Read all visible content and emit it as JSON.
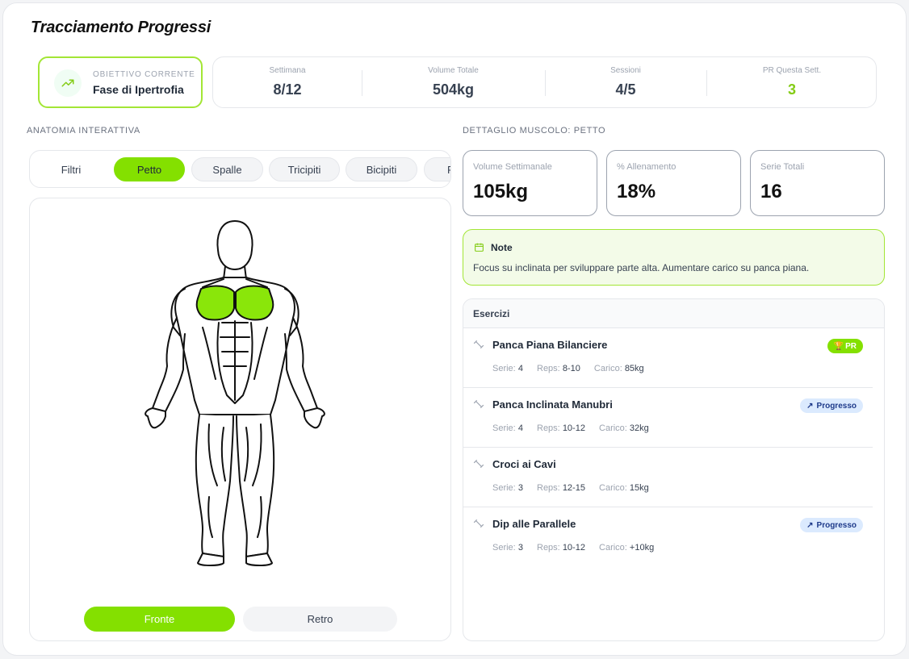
{
  "header": {
    "title": "Tracciamento Progressi"
  },
  "goal": {
    "caption": "Obiettivo Corrente",
    "value": "Fase di Ipertrofia"
  },
  "stats": [
    {
      "label": "Settimana",
      "value": "8/12"
    },
    {
      "label": "Volume Totale",
      "value": "504kg"
    },
    {
      "label": "Sessioni",
      "value": "4/5"
    },
    {
      "label": "PR Questa Sett.",
      "value": "3"
    }
  ],
  "anatomy": {
    "section_label": "Anatomia Interattiva",
    "filters": [
      "Filtri",
      "Petto",
      "Spalle",
      "Tricipiti",
      "Bicipiti",
      "F"
    ],
    "active_filter": "Petto",
    "view_buttons": {
      "front": "Fronte",
      "back": "Retro"
    },
    "active_view": "Fronte"
  },
  "detail": {
    "section_label": "Dettaglio Muscolo: Petto",
    "metrics": [
      {
        "label": "Volume Settimanale",
        "value": "105kg"
      },
      {
        "label": "% Allenamento",
        "value": "18%"
      },
      {
        "label": "Serie Totali",
        "value": "16"
      }
    ],
    "note": {
      "title": "Note",
      "text": "Focus su inclinata per sviluppare parte alta. Aumentare carico su panca piana."
    }
  },
  "exercises": {
    "title": "Esercizi",
    "meta_labels": {
      "sets": "Serie:",
      "reps": "Reps:",
      "load": "Carico:"
    },
    "items": [
      {
        "name": "Panca Piana Bilanciere",
        "sets": "4",
        "reps": "8-10",
        "load": "85kg",
        "badge": "PR",
        "badge_type": "pr"
      },
      {
        "name": "Panca Inclinata Manubri",
        "sets": "4",
        "reps": "10-12",
        "load": "32kg",
        "badge": "Progresso",
        "badge_type": "progress"
      },
      {
        "name": "Croci ai Cavi",
        "sets": "3",
        "reps": "12-15",
        "load": "15kg",
        "badge": "",
        "badge_type": "none"
      },
      {
        "name": "Dip alle Parallele",
        "sets": "3",
        "reps": "10-12",
        "load": "+10kg",
        "badge": "Progresso",
        "badge_type": "progress"
      }
    ]
  },
  "colors": {
    "accent": "#84e000",
    "accent_border": "#a3e635",
    "note_bg": "#f3fbe8",
    "progress_badge_bg": "#dbeafe"
  },
  "icons": {
    "goal": "trending-up-icon",
    "note": "calendar-icon",
    "exercise": "dumbbell-icon",
    "progress": "arrow-up-right-icon",
    "pr": "trophy-icon"
  }
}
